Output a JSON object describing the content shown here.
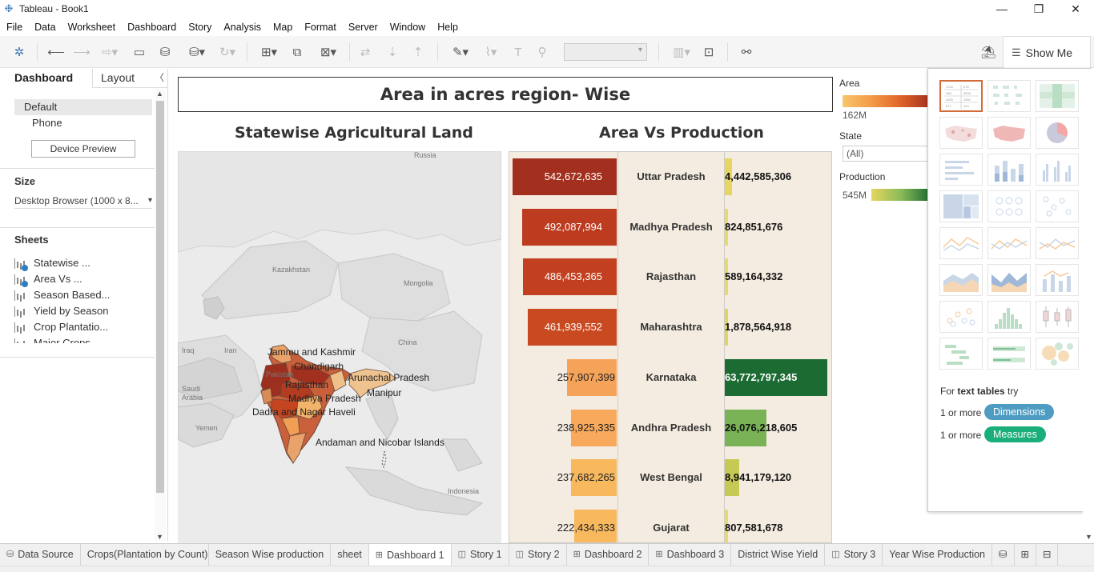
{
  "window": {
    "title": "Tableau - Book1"
  },
  "menu": [
    "File",
    "Data",
    "Worksheet",
    "Dashboard",
    "Story",
    "Analysis",
    "Map",
    "Format",
    "Server",
    "Window",
    "Help"
  ],
  "show_me": {
    "label": "Show Me",
    "hint_prefix": "For",
    "hint_type": "text tables",
    "hint_suffix": "try",
    "req1_text": "1 or more",
    "req1_pill": "Dimensions",
    "req2_text": "1 or more",
    "req2_pill": "Measures",
    "colors": {
      "dimensions": "#4e9cc1",
      "measures": "#1aaf7a"
    }
  },
  "left_pane": {
    "tab_dashboard": "Dashboard",
    "tab_layout": "Layout",
    "devices": [
      "Default",
      "Phone"
    ],
    "device_preview": "Device Preview",
    "size_heading": "Size",
    "size_value": "Desktop Browser (1000 x 8...",
    "sheets_heading": "Sheets",
    "sheets": [
      {
        "name": "Statewise ...",
        "used": true
      },
      {
        "name": "Area Vs ...",
        "used": true
      },
      {
        "name": "Season Based...",
        "used": false
      },
      {
        "name": "Yield by Season",
        "used": false
      },
      {
        "name": "Crop Plantatio...",
        "used": false
      },
      {
        "name": "Major Crops",
        "used": false
      }
    ]
  },
  "dashboard": {
    "title": "Area in acres region- Wise",
    "map_title": "Statewise Agricultural Land",
    "chart_title": "Area Vs Production",
    "map_labels": [
      "Russia",
      "Kazakhstan",
      "Mongolia",
      "China",
      "Iraq",
      "Iran",
      "Pakistan",
      "Saudi Arabia",
      "Yemen",
      "Indonesia"
    ],
    "state_labels": [
      "Jammu and Kashmir",
      "Chandigarh",
      "Arunachal Pradesh",
      "Rajasthan",
      "Madhya Pradesh",
      "Manipur",
      "Dadra and Nagar Haveli",
      "Andaman and Nicobar Islands"
    ]
  },
  "chart_data": {
    "type": "bar",
    "categories": [
      "Uttar Pradesh",
      "Madhya Pradesh",
      "Rajasthan",
      "Maharashtra",
      "Karnataka",
      "Andhra Pradesh",
      "West Bengal",
      "Gujarat"
    ],
    "series": [
      {
        "name": "Area",
        "values": [
          542672635,
          492087994,
          486453365,
          461939552,
          257907399,
          238925335,
          237682265,
          222434333
        ],
        "labels": [
          "542,672,635",
          "492,087,994",
          "486,453,365",
          "461,939,552",
          "257,907,399",
          "238,925,335",
          "237,682,265",
          "222,434,333"
        ],
        "colors": [
          "#a3301f",
          "#bd3b1f",
          "#c2401f",
          "#c94a21",
          "#f6a35a",
          "#f8a95b",
          "#f7b85e",
          "#f7b85e"
        ]
      },
      {
        "name": "Production",
        "values": [
          4442585306,
          824851676,
          589164332,
          1878564918,
          63772797345,
          26076218605,
          8941179120,
          807581678
        ],
        "labels": [
          "4,442,585,306",
          "824,851,676",
          "589,164,332",
          "1,878,564,918",
          "63,772,797,345",
          "26,076,218,605",
          "8,941,179,120",
          "807,581,678"
        ],
        "colors": [
          "#e6d55e",
          "#e8dc66",
          "#e8dc66",
          "#e4d45c",
          "#1b6b32",
          "#79b356",
          "#c7c955",
          "#e8dc66"
        ]
      }
    ]
  },
  "legends": {
    "area_title": "Area",
    "area_min": "162M",
    "state_title": "State",
    "state_value": "(All)",
    "production_title": "Production",
    "production_min": "545M"
  },
  "bottom_tabs": [
    {
      "label": "Data Source",
      "icon": "database-icon",
      "active": false
    },
    {
      "label": "Crops(Plantation by Count)",
      "icon": "",
      "active": false
    },
    {
      "label": "Season Wise production",
      "icon": "",
      "active": false
    },
    {
      "label": "sheet",
      "icon": "",
      "active": false
    },
    {
      "label": "Dashboard 1",
      "icon": "dashboard-icon",
      "active": true
    },
    {
      "label": "Story 1",
      "icon": "story-icon",
      "active": false
    },
    {
      "label": "Story 2",
      "icon": "story-icon",
      "active": false
    },
    {
      "label": "Dashboard 2",
      "icon": "dashboard-icon",
      "active": false
    },
    {
      "label": "Dashboard 3",
      "icon": "dashboard-icon",
      "active": false
    },
    {
      "label": "District Wise Yield",
      "icon": "",
      "active": false
    },
    {
      "label": "Story 3",
      "icon": "story-icon",
      "active": false
    },
    {
      "label": "Year Wise Production",
      "icon": "",
      "active": false
    }
  ]
}
